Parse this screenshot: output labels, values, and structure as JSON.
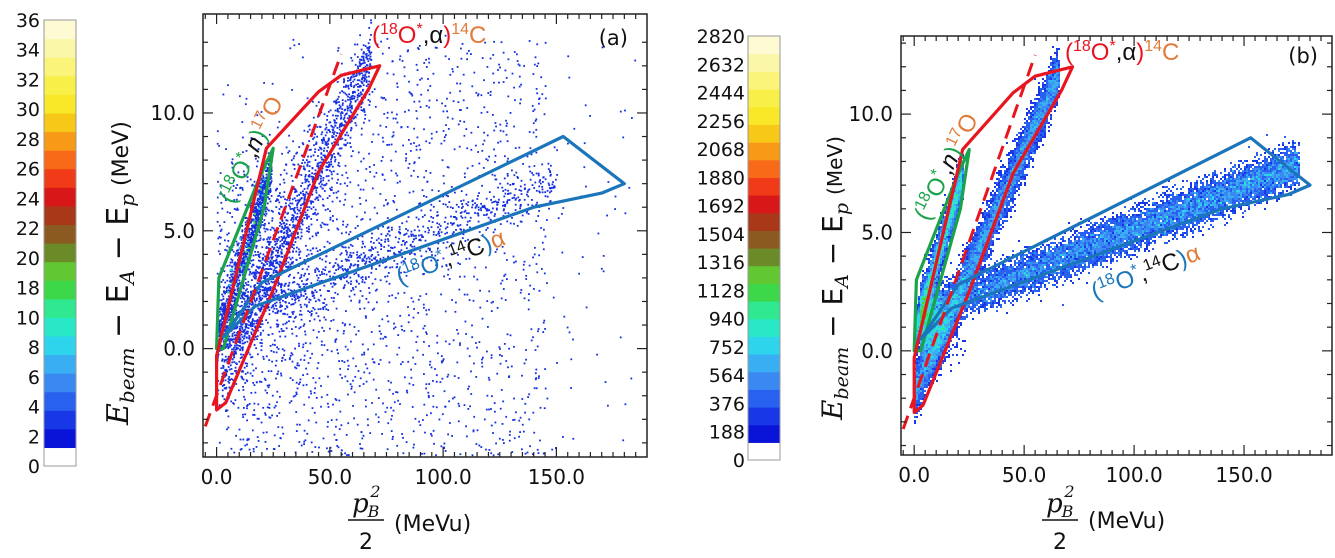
{
  "chart_data": [
    {
      "panel": "(a)",
      "type": "scatter",
      "xlabel_num": "p",
      "xlabel_sub": "B",
      "xlabel_sup": "2",
      "xlabel_den": "2",
      "xlabel_unit": "(MeVu)",
      "ylabel_main": "E",
      "ylabel_beam": "beam",
      "ylabel_mid": " − E",
      "ylabel_a": "A",
      "ylabel_end": " − E",
      "ylabel_p": "p",
      "ylabel_unit": "(MeV)",
      "xlim": [
        -6,
        190
      ],
      "ylim": [
        -4.6,
        14.2
      ],
      "xticks": [
        0,
        50,
        100,
        150
      ],
      "xtick_labels": [
        "0.0",
        "50.0",
        "100.0",
        "150.0"
      ],
      "yticks": [
        0,
        5,
        10
      ],
      "ytick_labels": [
        "0.0",
        "5.0",
        "10.0"
      ],
      "colorbar_labels": [
        "36",
        "34",
        "32",
        "30",
        "28",
        "26",
        "24",
        "22",
        "20",
        "18",
        "10",
        "8",
        "6",
        "4",
        "2",
        "0"
      ],
      "regions": [
        {
          "name": "(18O*,n)17O",
          "color": "#1aa34a",
          "vertices": [
            [
              0,
              0
            ],
            [
              1,
              3
            ],
            [
              20,
              7.5
            ],
            [
              25,
              8.5
            ],
            [
              21,
              6
            ],
            [
              6,
              1
            ],
            [
              3,
              0
            ]
          ]
        },
        {
          "name": "(18O*,α)14C",
          "color": "#e8141e",
          "vertices": [
            [
              0,
              -2.6
            ],
            [
              0,
              -0.3
            ],
            [
              22,
              8.5
            ],
            [
              45,
              10.9
            ],
            [
              55,
              11.6
            ],
            [
              72,
              12
            ],
            [
              67,
              11
            ],
            [
              45,
              7.5
            ],
            [
              25,
              2.5
            ],
            [
              4,
              -2.3
            ]
          ]
        },
        {
          "name": "(18O*,14C)α",
          "color": "#1b75bb",
          "vertices": [
            [
              3,
              0.5
            ],
            [
              20,
              2.8
            ],
            [
              153,
              9
            ],
            [
              180,
              7
            ],
            [
              170,
              6.6
            ],
            [
              140,
              6
            ],
            [
              17,
              1.8
            ]
          ]
        }
      ],
      "dashed_line": {
        "color": "#e8141e",
        "points": [
          [
            -5,
            -3.3
          ],
          [
            55,
            12.5
          ]
        ]
      },
      "annotations": [
        {
          "id": "alpha",
          "parts": [
            {
              "t": "(",
              "c": "#e8141e"
            },
            {
              "t": "18",
              "c": "#e8141e",
              "sup": true
            },
            {
              "t": "O",
              "c": "#e8141e"
            },
            {
              "t": "*",
              "c": "#e8141e",
              "sup": true
            },
            {
              "t": ",",
              "c": "#111111"
            },
            {
              "t": "α",
              "c": "#111111"
            },
            {
              "t": ")",
              "c": "#e8141e"
            },
            {
              "t": "14",
              "c": "#e07b39",
              "sup": true
            },
            {
              "t": "C",
              "c": "#e07b39"
            }
          ]
        },
        {
          "id": "neutron",
          "parts": [
            {
              "t": "(",
              "c": "#1aa34a"
            },
            {
              "t": "18",
              "c": "#1aa34a",
              "sup": true
            },
            {
              "t": "O",
              "c": "#1aa34a"
            },
            {
              "t": "*",
              "c": "#1aa34a",
              "sup": true
            },
            {
              "t": ",",
              "c": "#111111"
            },
            {
              "t": "n",
              "c": "#111111",
              "italic": true
            },
            {
              "t": ")",
              "c": "#1aa34a"
            },
            {
              "t": "17",
              "c": "#e07b39",
              "sup": true
            },
            {
              "t": "O",
              "c": "#e07b39"
            }
          ]
        },
        {
          "id": "carbon",
          "parts": [
            {
              "t": "(",
              "c": "#1b75bb"
            },
            {
              "t": "18",
              "c": "#1b75bb",
              "sup": true
            },
            {
              "t": "O",
              "c": "#1b75bb"
            },
            {
              "t": "*",
              "c": "#1b75bb",
              "sup": true
            },
            {
              "t": ",",
              "c": "#111111"
            },
            {
              "t": "14",
              "c": "#111111",
              "sup": true
            },
            {
              "t": "C",
              "c": "#111111"
            },
            {
              "t": ")",
              "c": "#1b75bb"
            },
            {
              "t": "α",
              "c": "#e07b39"
            }
          ]
        }
      ]
    },
    {
      "panel": "(b)",
      "type": "heatmap",
      "xlabel_num": "p",
      "xlabel_sub": "B",
      "xlabel_sup": "2",
      "xlabel_den": "2",
      "xlabel_unit": "(MeVu)",
      "ylabel_main": "E",
      "ylabel_beam": "beam",
      "ylabel_mid": " − E",
      "ylabel_a": "A",
      "ylabel_end": " − E",
      "ylabel_p": "p",
      "ylabel_unit": "(MeV)",
      "xlim": [
        -6,
        190
      ],
      "ylim": [
        -4.4,
        13.3
      ],
      "xticks": [
        0,
        50,
        100,
        150
      ],
      "xtick_labels": [
        "0.0",
        "50.0",
        "100.0",
        "150.0"
      ],
      "yticks": [
        0,
        5,
        10
      ],
      "ytick_labels": [
        "0.0",
        "5.0",
        "10.0"
      ],
      "colorbar_labels": [
        "2820",
        "2632",
        "2444",
        "2256",
        "2068",
        "1880",
        "1692",
        "1504",
        "1316",
        "1128",
        "940",
        "752",
        "564",
        "376",
        "188",
        "0"
      ],
      "regions": [
        {
          "name": "(18O*,n)17O",
          "color": "#1aa34a",
          "vertices": [
            [
              0,
              0
            ],
            [
              1,
              3
            ],
            [
              20,
              7.5
            ],
            [
              25,
              8.5
            ],
            [
              21,
              6
            ],
            [
              6,
              1
            ],
            [
              3,
              0
            ]
          ]
        },
        {
          "name": "(18O*,α)14C",
          "color": "#e8141e",
          "vertices": [
            [
              0,
              -2.6
            ],
            [
              0,
              -0.3
            ],
            [
              22,
              8.5
            ],
            [
              45,
              10.9
            ],
            [
              55,
              11.6
            ],
            [
              72,
              12
            ],
            [
              67,
              11
            ],
            [
              45,
              7.5
            ],
            [
              25,
              2.5
            ],
            [
              4,
              -2.3
            ]
          ]
        },
        {
          "name": "(18O*,14C)α",
          "color": "#1b75bb",
          "vertices": [
            [
              3,
              0.5
            ],
            [
              20,
              2.8
            ],
            [
              153,
              9
            ],
            [
              180,
              7
            ],
            [
              170,
              6.6
            ],
            [
              140,
              6
            ],
            [
              17,
              1.8
            ]
          ]
        }
      ],
      "dashed_line": {
        "color": "#e8141e",
        "points": [
          [
            -5,
            -3.3
          ],
          [
            55,
            12.5
          ]
        ]
      },
      "annotations": [
        {
          "id": "alpha",
          "parts": [
            {
              "t": "(",
              "c": "#e8141e"
            },
            {
              "t": "18",
              "c": "#e8141e",
              "sup": true
            },
            {
              "t": "O",
              "c": "#e8141e"
            },
            {
              "t": "*",
              "c": "#e8141e",
              "sup": true
            },
            {
              "t": ",",
              "c": "#111111"
            },
            {
              "t": "α",
              "c": "#111111"
            },
            {
              "t": ")",
              "c": "#e8141e"
            },
            {
              "t": "14",
              "c": "#e07b39",
              "sup": true
            },
            {
              "t": "C",
              "c": "#e07b39"
            }
          ]
        },
        {
          "id": "neutron",
          "parts": [
            {
              "t": "(",
              "c": "#1aa34a"
            },
            {
              "t": "18",
              "c": "#1aa34a",
              "sup": true
            },
            {
              "t": "O",
              "c": "#1aa34a"
            },
            {
              "t": "*",
              "c": "#1aa34a",
              "sup": true
            },
            {
              "t": ",",
              "c": "#111111"
            },
            {
              "t": "n",
              "c": "#111111",
              "italic": true
            },
            {
              "t": ")",
              "c": "#1aa34a"
            },
            {
              "t": "17",
              "c": "#e07b39",
              "sup": true
            },
            {
              "t": "O",
              "c": "#e07b39"
            }
          ]
        },
        {
          "id": "carbon",
          "parts": [
            {
              "t": "(",
              "c": "#1b75bb"
            },
            {
              "t": "18",
              "c": "#1b75bb",
              "sup": true
            },
            {
              "t": "O",
              "c": "#1b75bb"
            },
            {
              "t": "*",
              "c": "#1b75bb",
              "sup": true
            },
            {
              "t": ",",
              "c": "#111111"
            },
            {
              "t": "14",
              "c": "#111111",
              "sup": true
            },
            {
              "t": "C",
              "c": "#111111"
            },
            {
              "t": ")",
              "c": "#1b75bb"
            },
            {
              "t": "α",
              "c": "#e07b39"
            }
          ]
        }
      ]
    }
  ],
  "colormap": [
    "#ffffff",
    "#0a14d8",
    "#1838e8",
    "#2860f0",
    "#3a88f2",
    "#3aaef2",
    "#2ed3ec",
    "#28e8c8",
    "#30e890",
    "#3cd84a",
    "#62c832",
    "#6b8a28",
    "#8a5a20",
    "#a83818",
    "#d81818",
    "#f03a18",
    "#f86a18",
    "#f89a18",
    "#f8c818",
    "#f8e828",
    "#f8f048",
    "#faf47a",
    "#fbf7a8",
    "#fdfad4"
  ]
}
